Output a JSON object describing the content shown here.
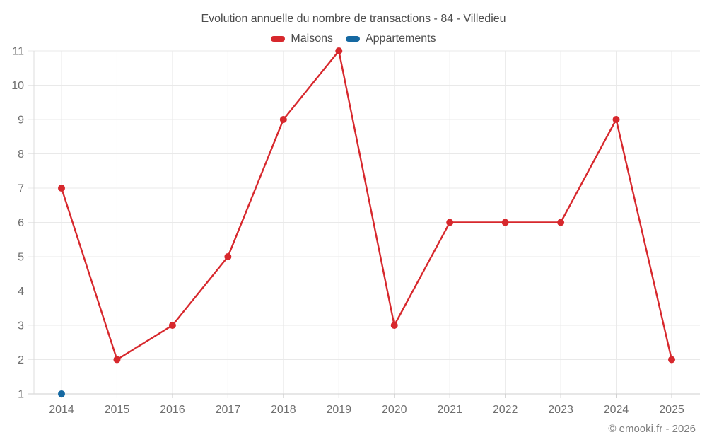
{
  "title": "Evolution annuelle du nombre de transactions - 84 - Villedieu",
  "footer": "© emooki.fr - 2026",
  "colors": {
    "maisons": "#d7282d",
    "appartements": "#1669a2",
    "gridline": "#e9e9e9",
    "axis_line": "#cfcfcf",
    "left_axis_line": "#dcdcdc",
    "tick_label": "#6f6f6f",
    "title_text": "#4d4d4d",
    "footer_text": "#7d7d7d"
  },
  "chart_data": {
    "type": "line",
    "title": "Evolution annuelle du nombre de transactions - 84 - Villedieu",
    "categories": [
      "2014",
      "2015",
      "2016",
      "2017",
      "2018",
      "2019",
      "2020",
      "2021",
      "2022",
      "2023",
      "2024",
      "2025"
    ],
    "series": [
      {
        "name": "Maisons",
        "color": "#d7282d",
        "values": [
          7,
          2,
          3,
          5,
          9,
          11,
          3,
          6,
          6,
          6,
          9,
          2
        ]
      },
      {
        "name": "Appartements",
        "color": "#1669a2",
        "values": [
          1,
          null,
          null,
          null,
          null,
          null,
          null,
          null,
          null,
          null,
          null,
          null
        ]
      }
    ],
    "xlabel": "",
    "ylabel": "",
    "ylim": [
      1,
      11
    ],
    "yticks": [
      1,
      2,
      3,
      4,
      5,
      6,
      7,
      8,
      9,
      10,
      11
    ],
    "grid": true,
    "legend_position": "top"
  }
}
